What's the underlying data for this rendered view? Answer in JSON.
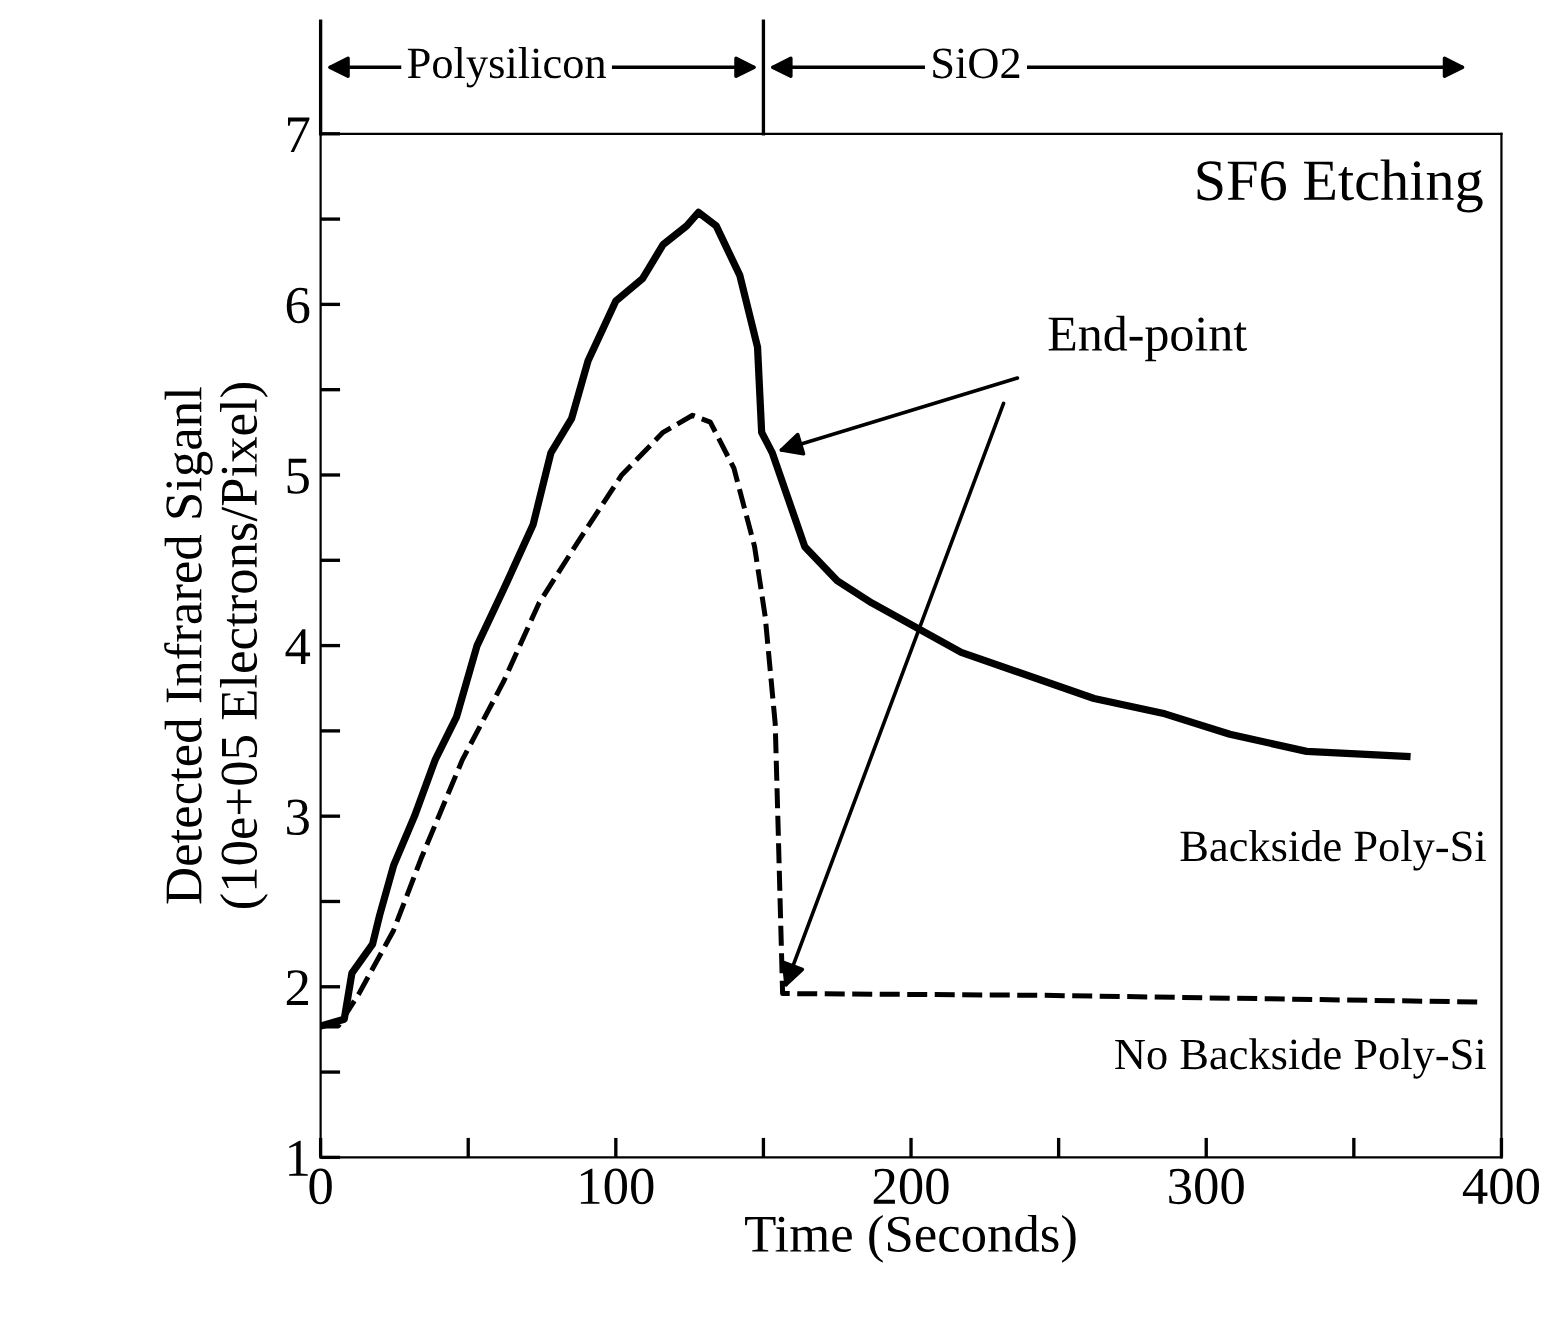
{
  "chart_data": {
    "type": "line",
    "title": "SF6 Etching",
    "xlabel": "Time (Seconds)",
    "ylabel": "Detected Infrared Siganl\n(10e+05 Electrons/Pixel)",
    "xlim": [
      0,
      400
    ],
    "ylim": [
      1,
      7
    ],
    "xticks": [
      0,
      {
        "value": 50,
        "label": null
      },
      100,
      {
        "value": 150,
        "label": null
      },
      200,
      {
        "value": 250,
        "label": null
      },
      300,
      {
        "value": 350,
        "label": null
      },
      400
    ],
    "yticks": [
      1,
      {
        "value": 1.5,
        "label": null
      },
      2,
      {
        "value": 2.5,
        "label": null
      },
      3,
      {
        "value": 3.5,
        "label": null
      },
      4,
      {
        "value": 4.5,
        "label": null
      },
      5,
      {
        "value": 5.5,
        "label": null
      },
      6,
      {
        "value": 6.5,
        "label": null
      },
      7
    ],
    "grid": false,
    "series": [
      {
        "name": "Backside Poly-Si",
        "color": "#000000",
        "line_style": "solid",
        "x": [
          0,
          8,
          10.6,
          17.6,
          20,
          24.7,
          31.8,
          38.8,
          46,
          53,
          62,
          72,
          78,
          85,
          90.6,
          100,
          109,
          116,
          124,
          128,
          134,
          142,
          148,
          149.4,
          153,
          164,
          175,
          186.7,
          217,
          262,
          286,
          308,
          334,
          368
        ],
        "values": [
          1.77,
          1.81,
          2.08,
          2.25,
          2.42,
          2.71,
          3.0,
          3.33,
          3.58,
          4.0,
          4.33,
          4.71,
          5.13,
          5.33,
          5.67,
          6.02,
          6.15,
          6.35,
          6.46,
          6.54,
          6.46,
          6.17,
          5.75,
          5.25,
          5.13,
          4.58,
          4.38,
          4.25,
          3.96,
          3.69,
          3.6,
          3.48,
          3.38,
          3.35
        ]
      },
      {
        "name": "No Backside Poly-Si",
        "color": "#000000",
        "line_style": "dashed",
        "x": [
          0,
          6,
          13,
          24.7,
          34,
          48,
          62,
          74,
          88,
          102,
          116,
          126,
          132,
          140,
          147,
          150.6,
          154,
          155,
          156.5,
          157.6,
          245,
          394
        ],
        "values": [
          1.77,
          1.77,
          1.96,
          2.33,
          2.75,
          3.33,
          3.79,
          4.25,
          4.63,
          5.0,
          5.25,
          5.35,
          5.31,
          5.04,
          4.58,
          4.17,
          3.54,
          2.92,
          1.96,
          1.96,
          1.95,
          1.91
        ]
      }
    ],
    "annotations": [
      {
        "text": "End-point",
        "x": 153,
        "y": 5.13
      },
      "Polysilicon",
      "SiO2"
    ]
  }
}
